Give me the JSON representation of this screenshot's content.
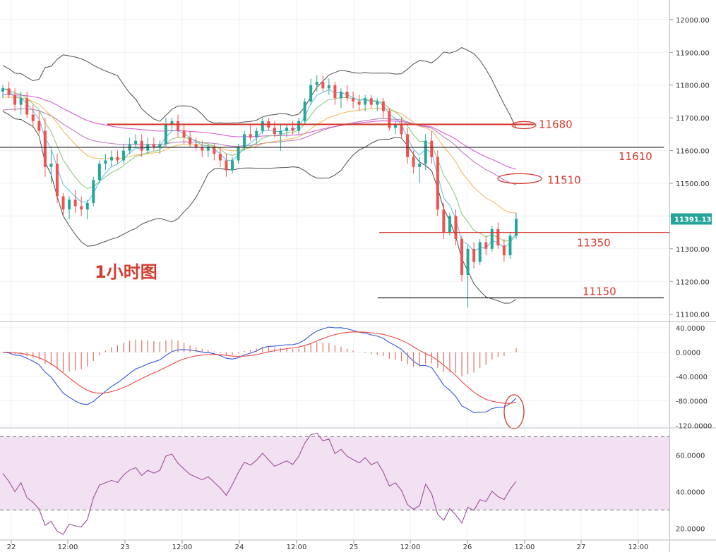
{
  "chart_data": {
    "type": "candlestick",
    "title": "1小时图",
    "timeframe": "1h",
    "colors": {
      "up": "#26a69a",
      "down": "#ef5350",
      "bollinger": "#222222",
      "ma_fast": "#4ab8e6",
      "ma_mid": "#7ac36a",
      "ma_slow": "#f0b040",
      "ma_long": "#d040d0",
      "ma_vlong": "#b06ab0",
      "annotation": "#d33a2f",
      "macd_line": "#3355dd",
      "signal_line": "#ee4444",
      "rsi_line": "#9b4f9b",
      "rsi_band": "#f2e1f2"
    },
    "price_axis": {
      "ylim": [
        11080,
        12060
      ],
      "ticks": [
        "12000.00",
        "11900.00",
        "11800.00",
        "11700.00",
        "11600.00",
        "11500.00",
        "11400.00",
        "11300.00",
        "11200.00",
        "11100.00"
      ],
      "last_price": "11391.13"
    },
    "x_axis": {
      "ticks": [
        "22",
        "12:00",
        "23",
        "12:00",
        "24",
        "12:00",
        "25",
        "12:00",
        "26",
        "12:00",
        "27",
        "12:00"
      ]
    },
    "horizontal_lines": [
      {
        "price": 11680,
        "label": "11680",
        "color": "#d33a2f"
      },
      {
        "price": 11610,
        "label": "11610",
        "color": "#222222"
      },
      {
        "price": 11510,
        "label": "11510",
        "color": "#d33a2f"
      },
      {
        "price": 11350,
        "label": "11350",
        "color": "#d33a2f"
      },
      {
        "price": 11150,
        "label": "11150",
        "color": "#222222"
      }
    ],
    "candles": [
      [
        0,
        11780,
        11800,
        11760,
        11790
      ],
      [
        1,
        11790,
        11810,
        11760,
        11770
      ],
      [
        2,
        11770,
        11790,
        11720,
        11740
      ],
      [
        3,
        11740,
        11780,
        11710,
        11760
      ],
      [
        4,
        11760,
        11780,
        11700,
        11710
      ],
      [
        5,
        11710,
        11740,
        11670,
        11690
      ],
      [
        6,
        11690,
        11720,
        11650,
        11660
      ],
      [
        7,
        11660,
        11700,
        11520,
        11550
      ],
      [
        8,
        11550,
        11600,
        11500,
        11560
      ],
      [
        9,
        11560,
        11590,
        11440,
        11460
      ],
      [
        10,
        11460,
        11470,
        11400,
        11420
      ],
      [
        11,
        11420,
        11460,
        11390,
        11450
      ],
      [
        12,
        11450,
        11480,
        11410,
        11430
      ],
      [
        13,
        11430,
        11460,
        11400,
        11420
      ],
      [
        14,
        11420,
        11450,
        11390,
        11440
      ],
      [
        15,
        11440,
        11520,
        11430,
        11510
      ],
      [
        16,
        11510,
        11570,
        11500,
        11560
      ],
      [
        17,
        11560,
        11590,
        11540,
        11570
      ],
      [
        18,
        11570,
        11600,
        11550,
        11580
      ],
      [
        19,
        11580,
        11600,
        11560,
        11570
      ],
      [
        20,
        11570,
        11620,
        11560,
        11600
      ],
      [
        21,
        11600,
        11640,
        11590,
        11620
      ],
      [
        22,
        11620,
        11650,
        11610,
        11630
      ],
      [
        23,
        11630,
        11650,
        11580,
        11600
      ],
      [
        24,
        11600,
        11640,
        11590,
        11620
      ],
      [
        25,
        11620,
        11640,
        11600,
        11610
      ],
      [
        26,
        11610,
        11630,
        11590,
        11620
      ],
      [
        27,
        11620,
        11700,
        11610,
        11680
      ],
      [
        28,
        11680,
        11700,
        11660,
        11690
      ],
      [
        29,
        11690,
        11710,
        11640,
        11660
      ],
      [
        30,
        11660,
        11680,
        11620,
        11640
      ],
      [
        31,
        11640,
        11660,
        11610,
        11620
      ],
      [
        32,
        11620,
        11640,
        11600,
        11610
      ],
      [
        33,
        11610,
        11630,
        11580,
        11600
      ],
      [
        34,
        11600,
        11620,
        11580,
        11610
      ],
      [
        35,
        11610,
        11620,
        11570,
        11590
      ],
      [
        36,
        11590,
        11610,
        11550,
        11570
      ],
      [
        37,
        11570,
        11590,
        11520,
        11540
      ],
      [
        38,
        11540,
        11580,
        11530,
        11570
      ],
      [
        39,
        11570,
        11620,
        11560,
        11610
      ],
      [
        40,
        11610,
        11660,
        11600,
        11650
      ],
      [
        41,
        11650,
        11680,
        11630,
        11640
      ],
      [
        42,
        11640,
        11670,
        11620,
        11660
      ],
      [
        43,
        11660,
        11700,
        11650,
        11690
      ],
      [
        44,
        11690,
        11700,
        11660,
        11670
      ],
      [
        45,
        11670,
        11690,
        11640,
        11650
      ],
      [
        46,
        11650,
        11680,
        11600,
        11660
      ],
      [
        47,
        11660,
        11680,
        11640,
        11670
      ],
      [
        48,
        11670,
        11690,
        11650,
        11660
      ],
      [
        49,
        11660,
        11700,
        11650,
        11690
      ],
      [
        50,
        11690,
        11760,
        11680,
        11750
      ],
      [
        51,
        11750,
        11820,
        11740,
        11800
      ],
      [
        52,
        11800,
        11830,
        11780,
        11810
      ],
      [
        53,
        11810,
        11830,
        11780,
        11790
      ],
      [
        54,
        11790,
        11820,
        11770,
        11800
      ],
      [
        55,
        11800,
        11810,
        11740,
        11760
      ],
      [
        56,
        11760,
        11790,
        11730,
        11780
      ],
      [
        57,
        11780,
        11800,
        11750,
        11760
      ],
      [
        58,
        11760,
        11780,
        11730,
        11750
      ],
      [
        59,
        11750,
        11770,
        11720,
        11740
      ],
      [
        60,
        11740,
        11770,
        11720,
        11760
      ],
      [
        61,
        11760,
        11770,
        11730,
        11740
      ],
      [
        62,
        11740,
        11760,
        11720,
        11750
      ],
      [
        63,
        11750,
        11760,
        11700,
        11720
      ],
      [
        64,
        11720,
        11730,
        11660,
        11670
      ],
      [
        65,
        11670,
        11690,
        11650,
        11680
      ],
      [
        66,
        11680,
        11700,
        11640,
        11650
      ],
      [
        67,
        11650,
        11670,
        11560,
        11580
      ],
      [
        68,
        11580,
        11600,
        11530,
        11550
      ],
      [
        69,
        11550,
        11580,
        11500,
        11560
      ],
      [
        70,
        11560,
        11650,
        11540,
        11630
      ],
      [
        71,
        11630,
        11660,
        11560,
        11580
      ],
      [
        72,
        11580,
        11600,
        11400,
        11420
      ],
      [
        73,
        11420,
        11440,
        11330,
        11350
      ],
      [
        74,
        11350,
        11410,
        11340,
        11400
      ],
      [
        75,
        11400,
        11420,
        11310,
        11330
      ],
      [
        76,
        11330,
        11340,
        11200,
        11220
      ],
      [
        77,
        11220,
        11310,
        11120,
        11300
      ],
      [
        78,
        11300,
        11320,
        11240,
        11260
      ],
      [
        79,
        11260,
        11330,
        11250,
        11320
      ],
      [
        80,
        11320,
        11340,
        11280,
        11300
      ],
      [
        81,
        11300,
        11370,
        11290,
        11360
      ],
      [
        82,
        11360,
        11380,
        11300,
        11310
      ],
      [
        83,
        11310,
        11330,
        11260,
        11280
      ],
      [
        84,
        11280,
        11350,
        11270,
        11340
      ],
      [
        85,
        11340,
        11410,
        11330,
        11391
      ]
    ],
    "indicators": {
      "macd": {
        "ylim": [
          -122,
          48
        ],
        "ticks": [
          "40.0000",
          "0.0000",
          "-40.0000",
          "-80.0000",
          "-120.0000"
        ]
      },
      "rsi": {
        "ylim": [
          14,
          74
        ],
        "ticks": [
          "60.0000",
          "40.0000",
          "20.0000"
        ],
        "bands": [
          70,
          30
        ]
      }
    }
  }
}
